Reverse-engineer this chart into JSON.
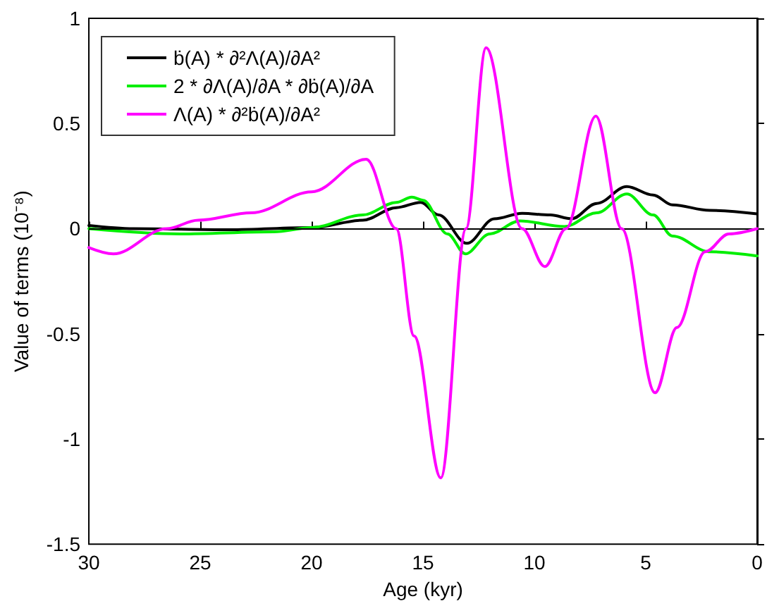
{
  "chart_data": {
    "type": "line",
    "xlabel": "Age (kyr)",
    "ylabel": "Value of terms (10⁻⁸)",
    "xlim": [
      30,
      0
    ],
    "xticks": [
      30,
      25,
      20,
      15,
      10,
      5,
      0
    ],
    "ylim": [
      -1.5,
      1
    ],
    "yticks": [
      -1.5,
      -1,
      -0.5,
      0,
      0.5,
      1
    ],
    "grid": false,
    "legend": "top left",
    "marker": "none",
    "line_style": "solid",
    "ref_lines": [
      {
        "axis": "y",
        "value": 0,
        "color": "#000000"
      }
    ],
    "series": [
      {
        "name": "ḃ(A) * ∂²Λ(A)/∂A²",
        "color": "#000000",
        "x": [
          30,
          28,
          23.7,
          20,
          17.7,
          16.2,
          15.1,
          14.3,
          13.03,
          11.8,
          10.55,
          9.28,
          8.33,
          7.2,
          5.85,
          4.67,
          3.8,
          2.14,
          0
        ],
        "values": [
          0.015,
          0,
          -0.005,
          0.005,
          0.04,
          0.1,
          0.125,
          0.065,
          -0.07,
          0.047,
          0.073,
          0.065,
          0.047,
          0.12,
          0.2,
          0.16,
          0.113,
          0.087,
          0.07
        ]
      },
      {
        "name": "2 * ∂Λ(A)/∂A * ∂ḃ(A)/∂A",
        "color": "#00ee00",
        "x": [
          30,
          25.9,
          21.7,
          20,
          17.7,
          16.2,
          15.5,
          15,
          13.9,
          13.1,
          12,
          10.65,
          8.65,
          7.2,
          5.85,
          4.67,
          3.8,
          2.14,
          0
        ],
        "values": [
          0,
          -0.025,
          -0.015,
          0.005,
          0.065,
          0.125,
          0.15,
          0.135,
          -0.025,
          -0.12,
          -0.025,
          0.037,
          0.01,
          0.075,
          0.165,
          0.065,
          -0.035,
          -0.11,
          -0.13
        ]
      },
      {
        "name": "Λ(A) * ∂²ḃ(A)/∂A²",
        "color": "#ff00ff",
        "x": [
          30,
          28.9,
          26.5,
          25.1,
          22.7,
          20,
          17.55,
          16.2,
          15.4,
          14.2,
          13.07,
          12.17,
          10.55,
          9.53,
          8.58,
          7.24,
          6.08,
          4.58,
          3.6,
          2.33,
          1.27,
          0
        ],
        "values": [
          -0.09,
          -0.12,
          0,
          0.04,
          0.075,
          0.175,
          0.33,
          0,
          -0.51,
          -1.185,
          0,
          0.86,
          0,
          -0.18,
          0,
          0.535,
          0,
          -0.78,
          -0.47,
          -0.11,
          -0.025,
          0
        ]
      }
    ]
  }
}
